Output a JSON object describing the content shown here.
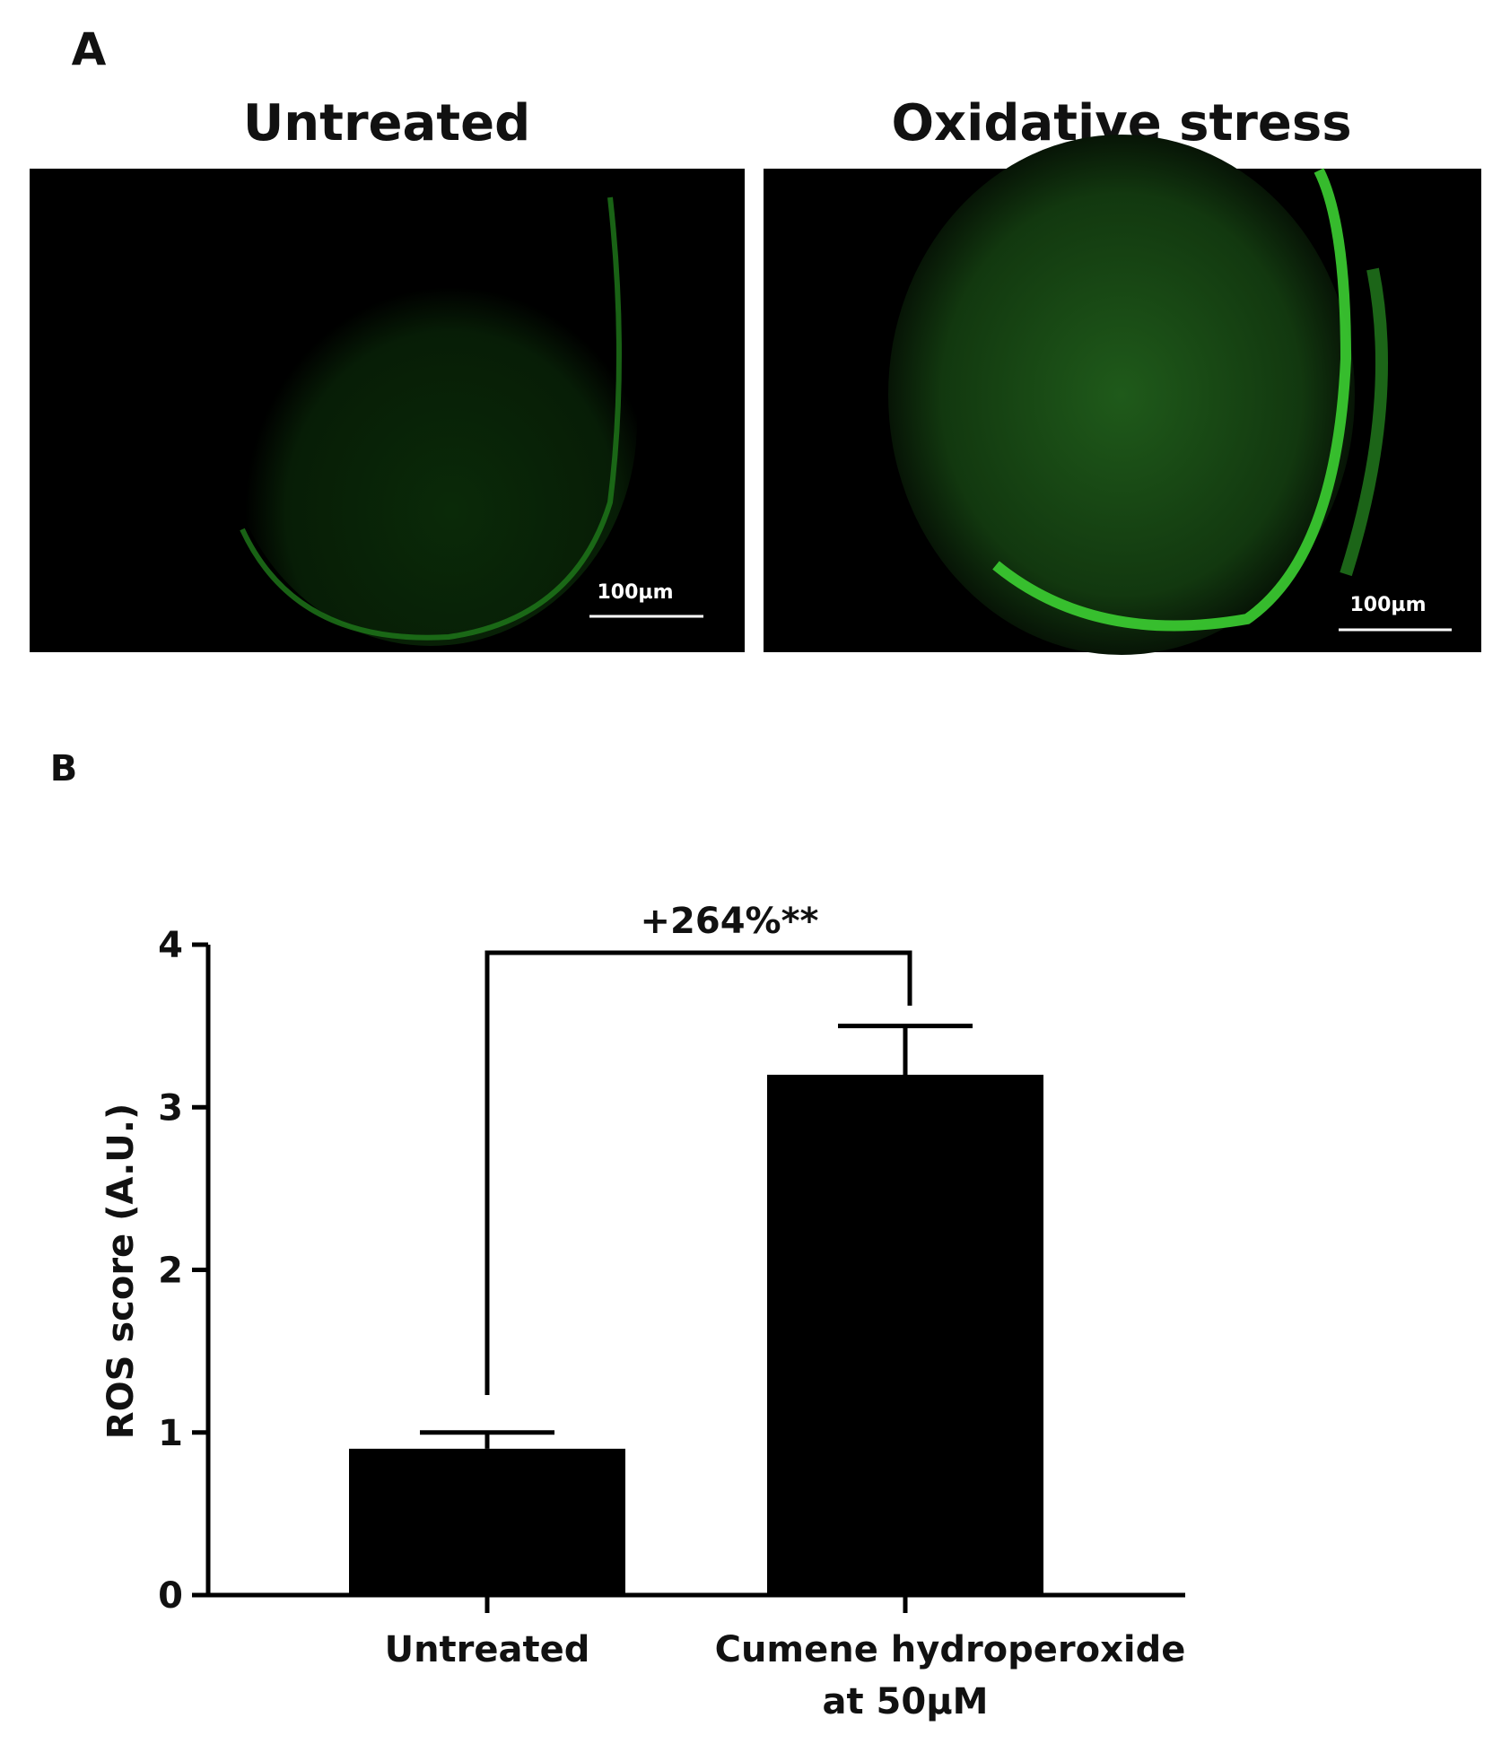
{
  "panel_a": {
    "label": "A",
    "images": [
      {
        "title": "Untreated",
        "scale_bar": "100µm"
      },
      {
        "title": "Oxidative stress",
        "scale_bar": "100µm"
      }
    ]
  },
  "chart_data": {
    "type": "bar",
    "panel_label": "B",
    "y_label": "ROS score (A.U.)",
    "categories": [
      [
        "Untreated"
      ],
      [
        "Cumene hydroperoxide",
        "at 50µM"
      ]
    ],
    "values": [
      0.9,
      3.2
    ],
    "errors": [
      0.1,
      0.3
    ],
    "color": "#000000",
    "ylim": [
      0,
      4
    ],
    "yticks": [
      0,
      1,
      2,
      3,
      4
    ],
    "annotation": "+264%**"
  }
}
